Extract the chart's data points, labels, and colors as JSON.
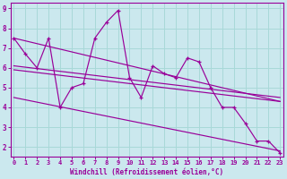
{
  "xlabel": "Windchill (Refroidissement éolien,°C)",
  "bg_color": "#cbe8ee",
  "line_color": "#990099",
  "grid_color": "#a8d8d8",
  "x_data": [
    0,
    1,
    2,
    3,
    4,
    5,
    6,
    7,
    8,
    9,
    10,
    11,
    12,
    13,
    14,
    15,
    16,
    17,
    18,
    19,
    20,
    21,
    22,
    23
  ],
  "y_data": [
    7.5,
    6.7,
    6.0,
    7.5,
    4.0,
    5.0,
    5.2,
    7.5,
    8.3,
    8.9,
    5.5,
    4.5,
    6.1,
    5.7,
    5.5,
    6.5,
    6.3,
    5.0,
    4.0,
    4.0,
    3.2,
    2.3,
    2.3,
    1.7
  ],
  "reg_lines": [
    {
      "x0": 0,
      "y0": 7.5,
      "x1": 23,
      "y1": 4.3
    },
    {
      "x0": 0,
      "y0": 6.1,
      "x1": 23,
      "y1": 4.5
    },
    {
      "x0": 0,
      "y0": 5.9,
      "x1": 23,
      "y1": 4.3
    },
    {
      "x0": 0,
      "y0": 4.5,
      "x1": 23,
      "y1": 1.8
    }
  ],
  "ylim": [
    1.5,
    9.3
  ],
  "xlim": [
    -0.3,
    23.3
  ],
  "yticks": [
    2,
    3,
    4,
    5,
    6,
    7,
    8,
    9
  ],
  "xticks": [
    0,
    1,
    2,
    3,
    4,
    5,
    6,
    7,
    8,
    9,
    10,
    11,
    12,
    13,
    14,
    15,
    16,
    17,
    18,
    19,
    20,
    21,
    22,
    23
  ]
}
